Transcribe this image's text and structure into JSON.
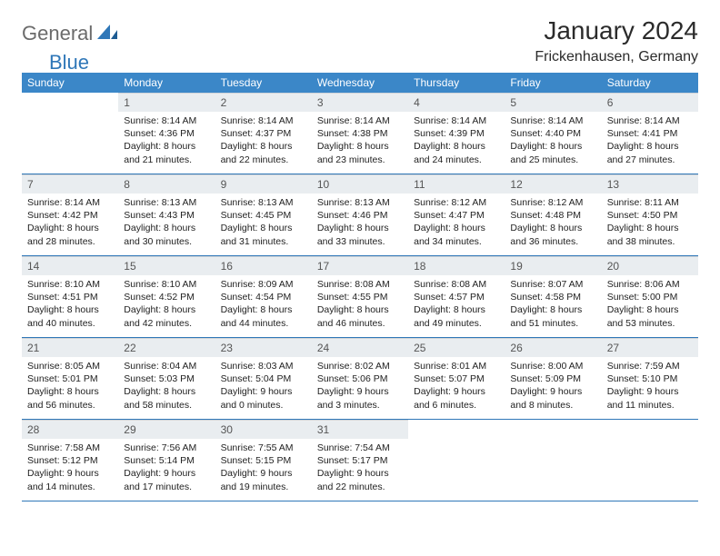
{
  "brand": {
    "part1": "General",
    "part2": "Blue"
  },
  "colors": {
    "header_bg": "#3b87c8",
    "header_text": "#ffffff",
    "daynum_bg": "#e9edf0",
    "daynum_text": "#555555",
    "body_text": "#222222",
    "rule": "#2f77b8",
    "logo_gray": "#6b6b6b",
    "logo_blue": "#2f77b8"
  },
  "title": "January 2024",
  "location": "Frickenhausen, Germany",
  "day_names": [
    "Sunday",
    "Monday",
    "Tuesday",
    "Wednesday",
    "Thursday",
    "Friday",
    "Saturday"
  ],
  "weeks": [
    [
      {
        "n": "",
        "lines": []
      },
      {
        "n": "1",
        "lines": [
          "Sunrise: 8:14 AM",
          "Sunset: 4:36 PM",
          "Daylight: 8 hours",
          "and 21 minutes."
        ]
      },
      {
        "n": "2",
        "lines": [
          "Sunrise: 8:14 AM",
          "Sunset: 4:37 PM",
          "Daylight: 8 hours",
          "and 22 minutes."
        ]
      },
      {
        "n": "3",
        "lines": [
          "Sunrise: 8:14 AM",
          "Sunset: 4:38 PM",
          "Daylight: 8 hours",
          "and 23 minutes."
        ]
      },
      {
        "n": "4",
        "lines": [
          "Sunrise: 8:14 AM",
          "Sunset: 4:39 PM",
          "Daylight: 8 hours",
          "and 24 minutes."
        ]
      },
      {
        "n": "5",
        "lines": [
          "Sunrise: 8:14 AM",
          "Sunset: 4:40 PM",
          "Daylight: 8 hours",
          "and 25 minutes."
        ]
      },
      {
        "n": "6",
        "lines": [
          "Sunrise: 8:14 AM",
          "Sunset: 4:41 PM",
          "Daylight: 8 hours",
          "and 27 minutes."
        ]
      }
    ],
    [
      {
        "n": "7",
        "lines": [
          "Sunrise: 8:14 AM",
          "Sunset: 4:42 PM",
          "Daylight: 8 hours",
          "and 28 minutes."
        ]
      },
      {
        "n": "8",
        "lines": [
          "Sunrise: 8:13 AM",
          "Sunset: 4:43 PM",
          "Daylight: 8 hours",
          "and 30 minutes."
        ]
      },
      {
        "n": "9",
        "lines": [
          "Sunrise: 8:13 AM",
          "Sunset: 4:45 PM",
          "Daylight: 8 hours",
          "and 31 minutes."
        ]
      },
      {
        "n": "10",
        "lines": [
          "Sunrise: 8:13 AM",
          "Sunset: 4:46 PM",
          "Daylight: 8 hours",
          "and 33 minutes."
        ]
      },
      {
        "n": "11",
        "lines": [
          "Sunrise: 8:12 AM",
          "Sunset: 4:47 PM",
          "Daylight: 8 hours",
          "and 34 minutes."
        ]
      },
      {
        "n": "12",
        "lines": [
          "Sunrise: 8:12 AM",
          "Sunset: 4:48 PM",
          "Daylight: 8 hours",
          "and 36 minutes."
        ]
      },
      {
        "n": "13",
        "lines": [
          "Sunrise: 8:11 AM",
          "Sunset: 4:50 PM",
          "Daylight: 8 hours",
          "and 38 minutes."
        ]
      }
    ],
    [
      {
        "n": "14",
        "lines": [
          "Sunrise: 8:10 AM",
          "Sunset: 4:51 PM",
          "Daylight: 8 hours",
          "and 40 minutes."
        ]
      },
      {
        "n": "15",
        "lines": [
          "Sunrise: 8:10 AM",
          "Sunset: 4:52 PM",
          "Daylight: 8 hours",
          "and 42 minutes."
        ]
      },
      {
        "n": "16",
        "lines": [
          "Sunrise: 8:09 AM",
          "Sunset: 4:54 PM",
          "Daylight: 8 hours",
          "and 44 minutes."
        ]
      },
      {
        "n": "17",
        "lines": [
          "Sunrise: 8:08 AM",
          "Sunset: 4:55 PM",
          "Daylight: 8 hours",
          "and 46 minutes."
        ]
      },
      {
        "n": "18",
        "lines": [
          "Sunrise: 8:08 AM",
          "Sunset: 4:57 PM",
          "Daylight: 8 hours",
          "and 49 minutes."
        ]
      },
      {
        "n": "19",
        "lines": [
          "Sunrise: 8:07 AM",
          "Sunset: 4:58 PM",
          "Daylight: 8 hours",
          "and 51 minutes."
        ]
      },
      {
        "n": "20",
        "lines": [
          "Sunrise: 8:06 AM",
          "Sunset: 5:00 PM",
          "Daylight: 8 hours",
          "and 53 minutes."
        ]
      }
    ],
    [
      {
        "n": "21",
        "lines": [
          "Sunrise: 8:05 AM",
          "Sunset: 5:01 PM",
          "Daylight: 8 hours",
          "and 56 minutes."
        ]
      },
      {
        "n": "22",
        "lines": [
          "Sunrise: 8:04 AM",
          "Sunset: 5:03 PM",
          "Daylight: 8 hours",
          "and 58 minutes."
        ]
      },
      {
        "n": "23",
        "lines": [
          "Sunrise: 8:03 AM",
          "Sunset: 5:04 PM",
          "Daylight: 9 hours",
          "and 0 minutes."
        ]
      },
      {
        "n": "24",
        "lines": [
          "Sunrise: 8:02 AM",
          "Sunset: 5:06 PM",
          "Daylight: 9 hours",
          "and 3 minutes."
        ]
      },
      {
        "n": "25",
        "lines": [
          "Sunrise: 8:01 AM",
          "Sunset: 5:07 PM",
          "Daylight: 9 hours",
          "and 6 minutes."
        ]
      },
      {
        "n": "26",
        "lines": [
          "Sunrise: 8:00 AM",
          "Sunset: 5:09 PM",
          "Daylight: 9 hours",
          "and 8 minutes."
        ]
      },
      {
        "n": "27",
        "lines": [
          "Sunrise: 7:59 AM",
          "Sunset: 5:10 PM",
          "Daylight: 9 hours",
          "and 11 minutes."
        ]
      }
    ],
    [
      {
        "n": "28",
        "lines": [
          "Sunrise: 7:58 AM",
          "Sunset: 5:12 PM",
          "Daylight: 9 hours",
          "and 14 minutes."
        ]
      },
      {
        "n": "29",
        "lines": [
          "Sunrise: 7:56 AM",
          "Sunset: 5:14 PM",
          "Daylight: 9 hours",
          "and 17 minutes."
        ]
      },
      {
        "n": "30",
        "lines": [
          "Sunrise: 7:55 AM",
          "Sunset: 5:15 PM",
          "Daylight: 9 hours",
          "and 19 minutes."
        ]
      },
      {
        "n": "31",
        "lines": [
          "Sunrise: 7:54 AM",
          "Sunset: 5:17 PM",
          "Daylight: 9 hours",
          "and 22 minutes."
        ]
      },
      {
        "n": "",
        "lines": []
      },
      {
        "n": "",
        "lines": []
      },
      {
        "n": "",
        "lines": []
      }
    ]
  ]
}
